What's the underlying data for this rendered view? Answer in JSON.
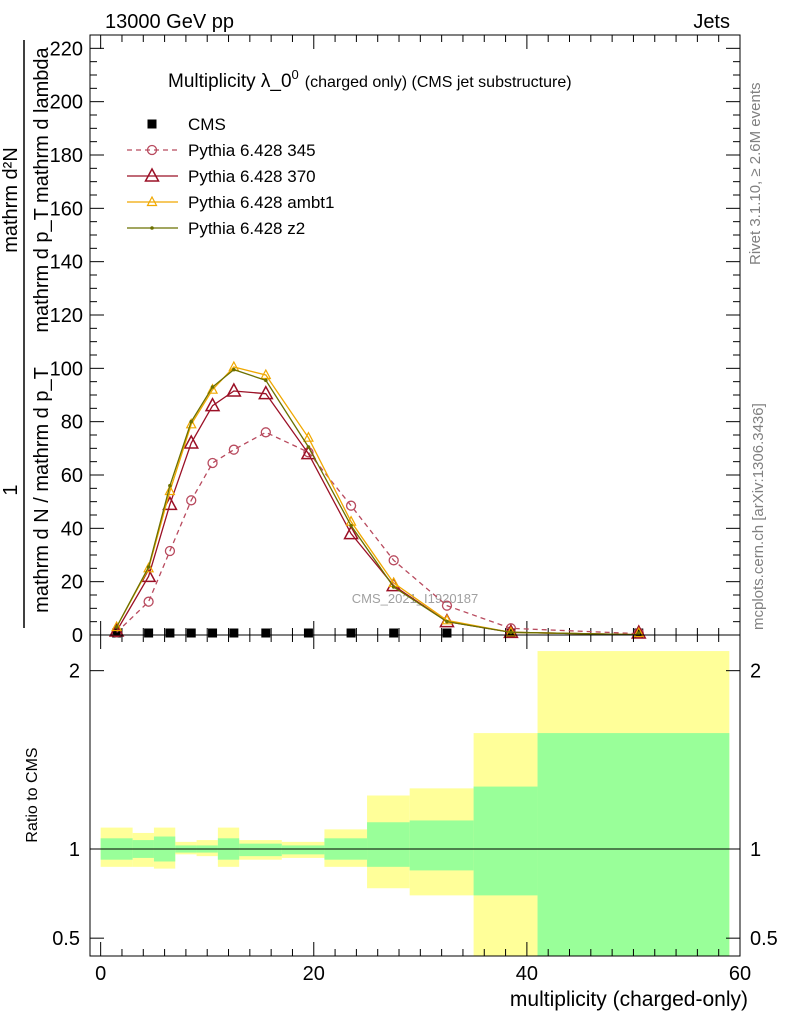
{
  "header": {
    "left": "13000 GeV pp",
    "right": "Jets"
  },
  "side_labels": {
    "rivet": "Rivet 3.1.10, ≥ 2.6M events",
    "mcplots": "mcplots.cern.ch [arXiv:1306.3436]"
  },
  "watermark": "CMS_2021_I1920187",
  "colors": {
    "cms": "#000000",
    "p345": "#b84a5e",
    "p370": "#9b1026",
    "ambt1": "#f0a800",
    "z2": "#6b7000",
    "band_inner": "#99ff99",
    "band_outer": "#ffff99"
  },
  "chart_data": [
    {
      "type": "line",
      "title": "Multiplicity λ_0⁰ (charged only) (CMS jet substructure)",
      "title_main": "Multiplicity λ_0",
      "title_sup": "0",
      "title_suffix": "(charged only) (CMS jet substructure)",
      "ylabel_numerator": "mathrm d²N",
      "ylabel_denominator": "mathrm d p_T mathrm d lambda",
      "ylabel_prefix": "1",
      "ylabel_prefix_denominator": "mathrm d N / mathrm d p_T",
      "ylabel_fraction": "mathrm d p_T mathrm d lambda",
      "ylabel_fraction_denominator": "mathrm d N / mathrm d p_T",
      "xlim": [
        -1,
        60
      ],
      "ylim": [
        0,
        225
      ],
      "y_ticks": [
        0,
        20,
        40,
        60,
        80,
        100,
        120,
        140,
        160,
        180,
        200,
        220
      ],
      "x": [
        1.5,
        4.5,
        6.5,
        8.5,
        10.5,
        12.5,
        15.5,
        19.5,
        23.5,
        27.5,
        32.5,
        38.5,
        50.5
      ],
      "legend_position": "top-left",
      "series": [
        {
          "name": "CMS",
          "key": "cms",
          "marker": "square",
          "values": [
            0.1,
            0.4,
            0.5,
            0.5,
            0.5,
            0.5,
            0.4,
            0.4,
            0.3,
            0.2,
            0.1,
            0.02,
            0.002
          ]
        },
        {
          "name": "Pythia 6.428 345",
          "key": "p345",
          "marker": "circle",
          "dashed": true,
          "values": [
            1.0,
            12.5,
            31.5,
            50.5,
            64.5,
            69.5,
            76.0,
            68.5,
            48.5,
            28.0,
            11.0,
            2.5,
            0.5
          ]
        },
        {
          "name": "Pythia 6.428 370",
          "key": "p370",
          "marker": "triangle",
          "values": [
            1.5,
            22.0,
            49.0,
            72.0,
            86.0,
            91.5,
            90.5,
            68.0,
            38.0,
            18.5,
            5.0,
            1.0,
            0.1
          ]
        },
        {
          "name": "Pythia 6.428 ambt1",
          "key": "ambt1",
          "marker": "triangle-small",
          "values": [
            3.0,
            25.0,
            54.0,
            79.0,
            92.0,
            100.5,
            97.5,
            74.0,
            42.5,
            19.5,
            5.5,
            1.0,
            0.1
          ]
        },
        {
          "name": "Pythia 6.428 z2",
          "key": "z2",
          "marker": "dot",
          "values": [
            3.0,
            25.5,
            56.0,
            80.0,
            93.0,
            99.5,
            95.5,
            70.5,
            41.0,
            18.0,
            5.0,
            1.0,
            0.1
          ]
        }
      ]
    },
    {
      "type": "area",
      "ylabel": "Ratio to CMS",
      "xlabel": "multiplicity (charged-only)",
      "xlim": [
        -1,
        60
      ],
      "ylim": [
        0.4,
        2.2
      ],
      "y_ticks": [
        0.5,
        1,
        2
      ],
      "x_ticks": [
        0,
        20,
        40,
        60
      ],
      "bin_edges": [
        0,
        3,
        5,
        7,
        9,
        11,
        13,
        17,
        21,
        25,
        29,
        35,
        41,
        59
      ],
      "series": [
        {
          "name": "outer",
          "key": "band_outer",
          "lo": [
            0.9,
            0.9,
            0.89,
            0.97,
            0.96,
            0.9,
            0.94,
            0.95,
            0.9,
            0.78,
            0.74,
            0.36,
            0.36
          ],
          "hi": [
            1.12,
            1.09,
            1.12,
            1.04,
            1.05,
            1.12,
            1.05,
            1.04,
            1.11,
            1.3,
            1.34,
            1.65,
            2.11
          ]
        },
        {
          "name": "inner",
          "key": "band_inner",
          "lo": [
            0.94,
            0.95,
            0.93,
            0.98,
            0.98,
            0.94,
            0.96,
            0.97,
            0.94,
            0.9,
            0.88,
            0.74,
            0.37
          ],
          "hi": [
            1.06,
            1.05,
            1.07,
            1.02,
            1.02,
            1.06,
            1.03,
            1.02,
            1.06,
            1.15,
            1.16,
            1.35,
            1.65
          ]
        }
      ]
    }
  ]
}
